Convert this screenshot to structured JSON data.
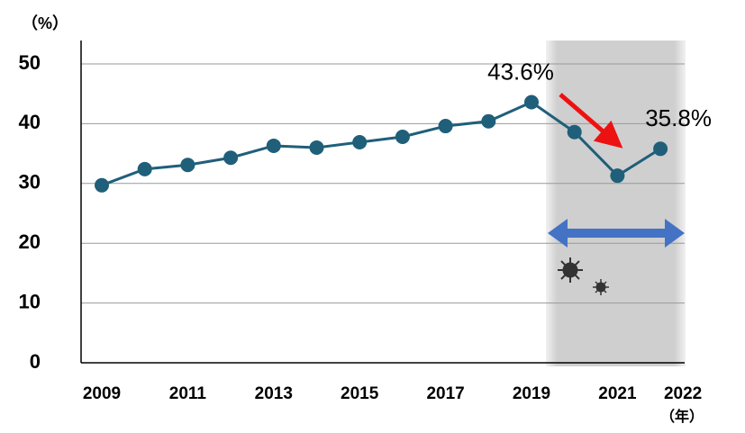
{
  "chart_data": {
    "type": "line",
    "y_unit": "（%）",
    "x_unit": "（年）",
    "categories": [
      "2009",
      null,
      "2011",
      null,
      "2013",
      null,
      "2015",
      null,
      "2017",
      null,
      "2019",
      null,
      "2021",
      "2022"
    ],
    "values": [
      29.7,
      32.4,
      33.1,
      34.3,
      36.3,
      36.0,
      36.9,
      37.8,
      39.6,
      40.4,
      43.6,
      38.6,
      31.3,
      35.8
    ],
    "value_labels": [
      null,
      null,
      null,
      null,
      null,
      null,
      null,
      null,
      null,
      null,
      "43.6%",
      null,
      null,
      "35.8%"
    ],
    "color": "#1f5f7a",
    "ylim": [
      0,
      50
    ],
    "yticks": [
      0,
      10,
      20,
      30,
      40,
      50
    ],
    "grid": true
  }
}
